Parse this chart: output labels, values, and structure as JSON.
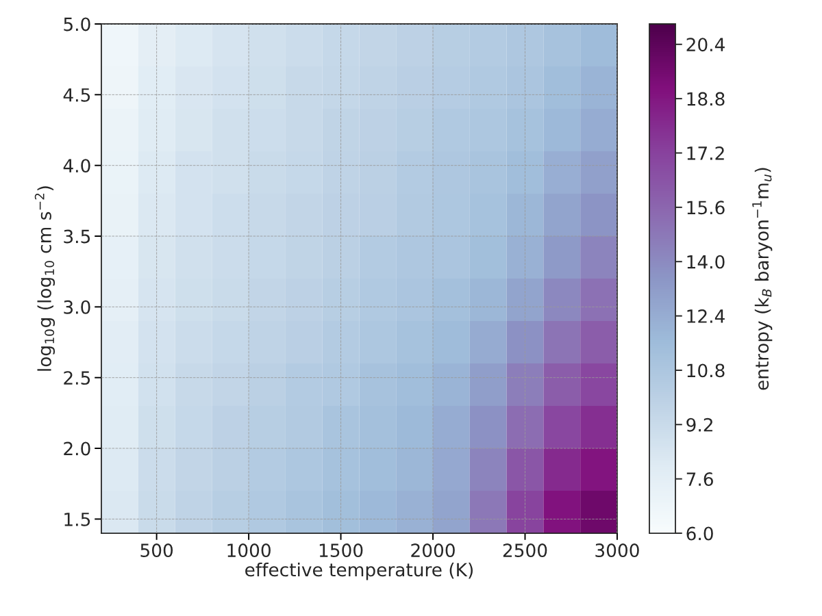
{
  "chart_data": {
    "type": "heatmap",
    "xlabel": "effective temperature (K)",
    "ylabel": "log$_{10}$g (log$_{10}$ cm s$^{−2}$)",
    "clabel": "entropy (k$_{B}$ baryon$^{−1}$m$_{u}$)",
    "x": [
      300,
      500,
      700,
      900,
      1100,
      1300,
      1500,
      1700,
      1900,
      2100,
      2300,
      2500,
      2700,
      2900
    ],
    "y": [
      4.85,
      4.55,
      4.25,
      3.95,
      3.65,
      3.35,
      3.05,
      2.75,
      2.45,
      2.15,
      1.85,
      1.55
    ],
    "cells": [
      [
        6.7,
        7.6,
        8.1,
        8.5,
        8.8,
        9.1,
        9.4,
        9.6,
        9.9,
        10.2,
        10.4,
        10.7,
        11.1,
        11.6
      ],
      [
        6.8,
        7.8,
        8.3,
        8.6,
        8.9,
        9.3,
        9.5,
        9.8,
        10.1,
        10.3,
        10.6,
        10.9,
        11.5,
        12.0
      ],
      [
        7.0,
        7.9,
        8.4,
        8.8,
        9.0,
        9.3,
        9.7,
        9.9,
        10.2,
        10.6,
        10.8,
        11.2,
        11.8,
        12.4
      ],
      [
        7.1,
        8.1,
        8.6,
        8.8,
        9.2,
        9.4,
        9.8,
        10.0,
        10.4,
        10.7,
        11.0,
        11.5,
        12.3,
        13.0
      ],
      [
        7.2,
        8.2,
        8.6,
        9.0,
        9.3,
        9.6,
        9.9,
        10.1,
        10.5,
        10.8,
        11.2,
        11.9,
        12.8,
        13.6
      ],
      [
        7.4,
        8.4,
        8.8,
        9.1,
        9.4,
        9.7,
        10.0,
        10.4,
        10.7,
        10.9,
        11.4,
        12.2,
        13.3,
        14.3
      ],
      [
        7.5,
        8.5,
        8.9,
        9.2,
        9.6,
        9.9,
        10.2,
        10.6,
        10.9,
        11.3,
        11.9,
        12.8,
        14.1,
        15.1
      ],
      [
        7.7,
        8.6,
        9.1,
        9.4,
        9.8,
        10.1,
        10.4,
        10.8,
        11.2,
        11.6,
        12.5,
        13.7,
        15.0,
        16.0
      ],
      [
        7.8,
        8.7,
        9.3,
        9.6,
        10.0,
        10.4,
        10.6,
        11.1,
        11.5,
        12.0,
        13.1,
        14.5,
        16.0,
        17.0
      ],
      [
        7.9,
        8.9,
        9.4,
        9.9,
        10.2,
        10.5,
        11.0,
        11.3,
        11.7,
        12.4,
        13.7,
        15.3,
        17.0,
        17.9
      ],
      [
        8.1,
        9.1,
        9.6,
        10.0,
        10.4,
        10.8,
        11.2,
        11.5,
        11.9,
        12.6,
        14.3,
        16.3,
        18.1,
        18.9
      ],
      [
        8.2,
        9.2,
        9.8,
        10.2,
        10.6,
        11.0,
        11.4,
        11.8,
        12.2,
        12.8,
        14.8,
        17.1,
        19.0,
        19.8
      ]
    ],
    "xlim": [
      200,
      3000
    ],
    "xticks": [
      500,
      1000,
      1500,
      2000,
      2500,
      3000
    ],
    "ylim": [
      1.4,
      5.0
    ],
    "yticks": [
      1.5,
      {
        "value": 2,
        "label": "2.0"
      },
      2.5,
      {
        "value": 3,
        "label": "3.0"
      },
      3.5,
      {
        "value": 4,
        "label": "4.0"
      },
      4.5,
      {
        "value": 5,
        "label": "5.0"
      }
    ],
    "clim": [
      6.0,
      21.0
    ],
    "cticks": [
      {
        "value": 6,
        "label": "6.0"
      },
      7.6,
      9.2,
      10.8,
      12.4,
      {
        "value": 14,
        "label": "14.0"
      },
      15.6,
      17.2,
      18.8,
      20.4
    ],
    "grid": true
  }
}
